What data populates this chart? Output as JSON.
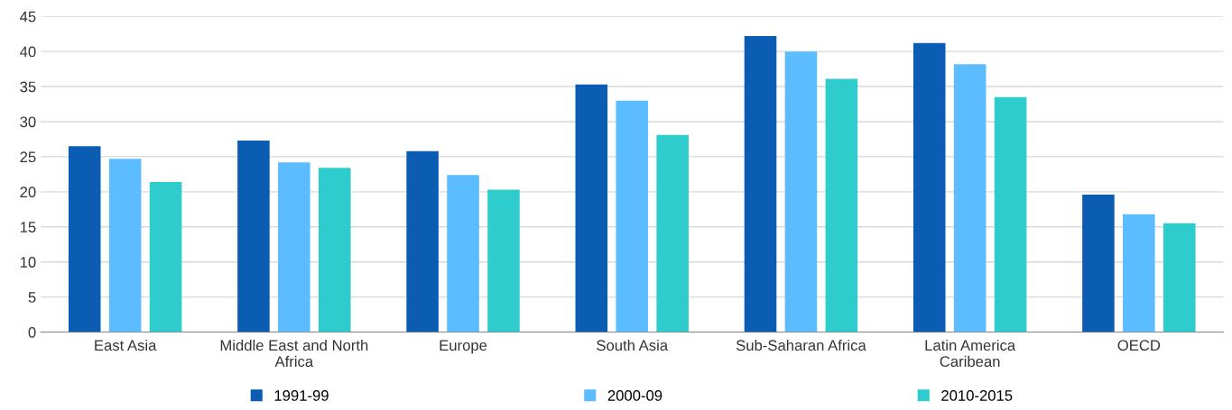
{
  "chart_data": {
    "type": "bar",
    "categories": [
      "East Asia",
      "Middle East and North Africa",
      "Europe",
      "South Asia",
      "Sub-Saharan Africa",
      "Latin America Caribean",
      "OECD"
    ],
    "series": [
      {
        "name": "1991-99",
        "color": "#0b5db3",
        "values": [
          26.5,
          27.3,
          25.8,
          35.3,
          42.2,
          41.2,
          19.6
        ]
      },
      {
        "name": "2000-09",
        "color": "#5bbcff",
        "values": [
          24.7,
          24.2,
          22.4,
          33.0,
          40.0,
          38.2,
          16.8
        ]
      },
      {
        "name": "2010-2015",
        "color": "#2ecccc",
        "values": [
          21.4,
          23.4,
          20.3,
          28.1,
          36.1,
          33.5,
          15.5
        ]
      }
    ],
    "ylim": [
      0,
      45
    ],
    "yticks": [
      0,
      5,
      10,
      15,
      20,
      25,
      30,
      35,
      40,
      45
    ],
    "grid": "y",
    "legend": "bottom"
  }
}
